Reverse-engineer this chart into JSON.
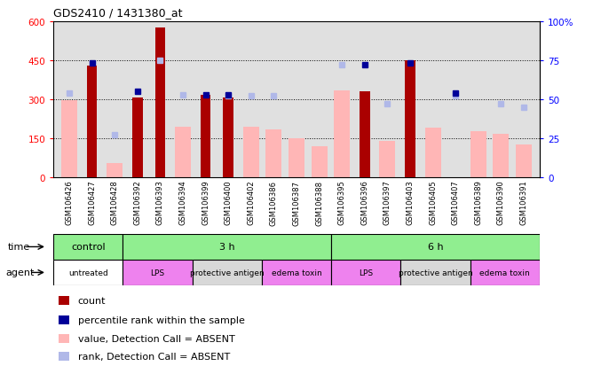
{
  "title": "GDS2410 / 1431380_at",
  "samples": [
    "GSM106426",
    "GSM106427",
    "GSM106428",
    "GSM106392",
    "GSM106393",
    "GSM106394",
    "GSM106399",
    "GSM106400",
    "GSM106402",
    "GSM106386",
    "GSM106387",
    "GSM106388",
    "GSM106395",
    "GSM106396",
    "GSM106397",
    "GSM106403",
    "GSM106405",
    "GSM106407",
    "GSM106389",
    "GSM106390",
    "GSM106391"
  ],
  "count": [
    null,
    430,
    null,
    305,
    575,
    null,
    315,
    305,
    null,
    null,
    null,
    null,
    null,
    330,
    null,
    450,
    null,
    null,
    null,
    null,
    null
  ],
  "percentile_rank": [
    null,
    73,
    null,
    55,
    null,
    null,
    53,
    53,
    null,
    null,
    null,
    null,
    null,
    72,
    null,
    73,
    null,
    54,
    null,
    null,
    null
  ],
  "value_absent": [
    295,
    null,
    55,
    null,
    null,
    195,
    null,
    null,
    195,
    185,
    150,
    120,
    335,
    null,
    140,
    null,
    190,
    null,
    175,
    165,
    125
  ],
  "rank_absent": [
    54,
    null,
    27,
    null,
    75,
    53,
    null,
    52,
    52,
    52,
    null,
    null,
    72,
    null,
    47,
    null,
    null,
    52,
    null,
    47,
    45
  ],
  "ylim_left": [
    0,
    600
  ],
  "ylim_right": [
    0,
    100
  ],
  "yticks_left": [
    0,
    150,
    300,
    450,
    600
  ],
  "yticks_right": [
    0,
    25,
    50,
    75,
    100
  ],
  "ytick_labels_left": [
    "0",
    "150",
    "300",
    "450",
    "600"
  ],
  "ytick_labels_right": [
    "0",
    "25",
    "50",
    "75",
    "100%"
  ],
  "colors": {
    "count_bar": "#aa0000",
    "percentile_bar": "#000099",
    "value_absent_bar": "#ffb6b6",
    "rank_absent_bar": "#b0b8e8",
    "plot_bg": "#e0e0e0",
    "label_col_bg": "#c0c0c0"
  },
  "time_groups": [
    {
      "label": "control",
      "start": 0,
      "end": 3,
      "color": "#90ee90"
    },
    {
      "label": "3 h",
      "start": 3,
      "end": 12,
      "color": "#90ee90"
    },
    {
      "label": "6 h",
      "start": 12,
      "end": 21,
      "color": "#90ee90"
    }
  ],
  "agent_groups": [
    {
      "label": "untreated",
      "start": 0,
      "end": 3,
      "color": "#ffffff"
    },
    {
      "label": "LPS",
      "start": 3,
      "end": 6,
      "color": "#ee82ee"
    },
    {
      "label": "protective antigen",
      "start": 6,
      "end": 9,
      "color": "#d8d8d8"
    },
    {
      "label": "edema toxin",
      "start": 9,
      "end": 12,
      "color": "#ee82ee"
    },
    {
      "label": "LPS",
      "start": 12,
      "end": 15,
      "color": "#ee82ee"
    },
    {
      "label": "protective antigen",
      "start": 15,
      "end": 18,
      "color": "#d8d8d8"
    },
    {
      "label": "edema toxin",
      "start": 18,
      "end": 21,
      "color": "#ee82ee"
    }
  ],
  "legend_labels": [
    "count",
    "percentile rank within the sample",
    "value, Detection Call = ABSENT",
    "rank, Detection Call = ABSENT"
  ],
  "legend_colors": [
    "#aa0000",
    "#000099",
    "#ffb6b6",
    "#b0b8e8"
  ]
}
